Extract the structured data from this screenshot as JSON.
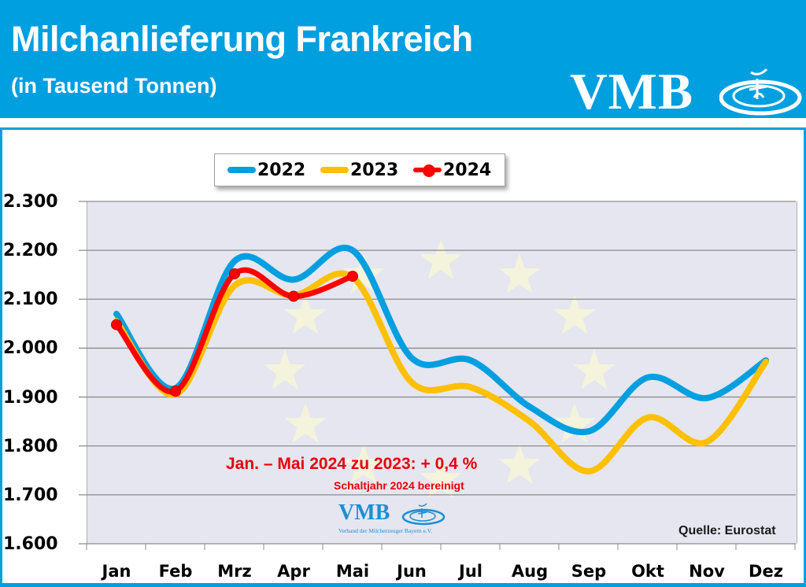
{
  "header": {
    "title": "Milchanlieferung Frankreich",
    "subtitle": "(in Tausend Tonnen)",
    "logo_text": "VMB"
  },
  "legend": {
    "items": [
      {
        "label": "2022",
        "color": "#009fe0",
        "marker": false
      },
      {
        "label": "2023",
        "color": "#ffc000",
        "marker": false
      },
      {
        "label": "2024",
        "color": "#ff0000",
        "marker": true
      }
    ]
  },
  "annotation": {
    "main": "Jan. – Mai 2024 zu 2023:  + 0,4 %",
    "sub": "Schaltjahr 2024 bereinigt",
    "color": "#e8000b"
  },
  "watermark": {
    "logo_text": "VMB",
    "caption": "Verband der Milcherzeuger Bayern e.V."
  },
  "source": "Quelle: Eurostat",
  "colors": {
    "header_bg": "#009fe0",
    "plot_bg": "#e5e6ef",
    "series_2022": "#009fe0",
    "series_2023": "#ffc000",
    "series_2024": "#ff0000"
  },
  "chart_data": {
    "type": "line",
    "title": "Milchanlieferung Frankreich",
    "subtitle": "(in Tausend Tonnen)",
    "xlabel": "",
    "ylabel": "",
    "categories": [
      "Jan",
      "Feb",
      "Mrz",
      "Apr",
      "Mai",
      "Jun",
      "Jul",
      "Aug",
      "Sep",
      "Okt",
      "Nov",
      "Dez"
    ],
    "y_tick_labels": [
      "2.300",
      "2.200",
      "2.100",
      "2.000",
      "1.900",
      "1.800",
      "1.700",
      "1.600"
    ],
    "ylim": [
      1600,
      2300
    ],
    "grid": true,
    "legend_position": "top",
    "smoothed": true,
    "series": [
      {
        "name": "2022",
        "color": "#009fe0",
        "values": [
          2070,
          1918,
          2178,
          2140,
          2200,
          1980,
          1975,
          1880,
          1830,
          1940,
          1898,
          1975
        ]
      },
      {
        "name": "2023",
        "color": "#ffc000",
        "values": [
          2055,
          1905,
          2128,
          2108,
          2145,
          1930,
          1920,
          1850,
          1748,
          1858,
          1808,
          1972
        ]
      },
      {
        "name": "2024",
        "color": "#ff0000",
        "markers": true,
        "values": [
          2048,
          1912,
          2152,
          2106,
          2147
        ]
      }
    ],
    "annotations": [
      "Jan. – Mai 2024 zu 2023:  + 0,4 %",
      "Schaltjahr 2024 bereinigt",
      "Quelle: Eurostat"
    ]
  }
}
